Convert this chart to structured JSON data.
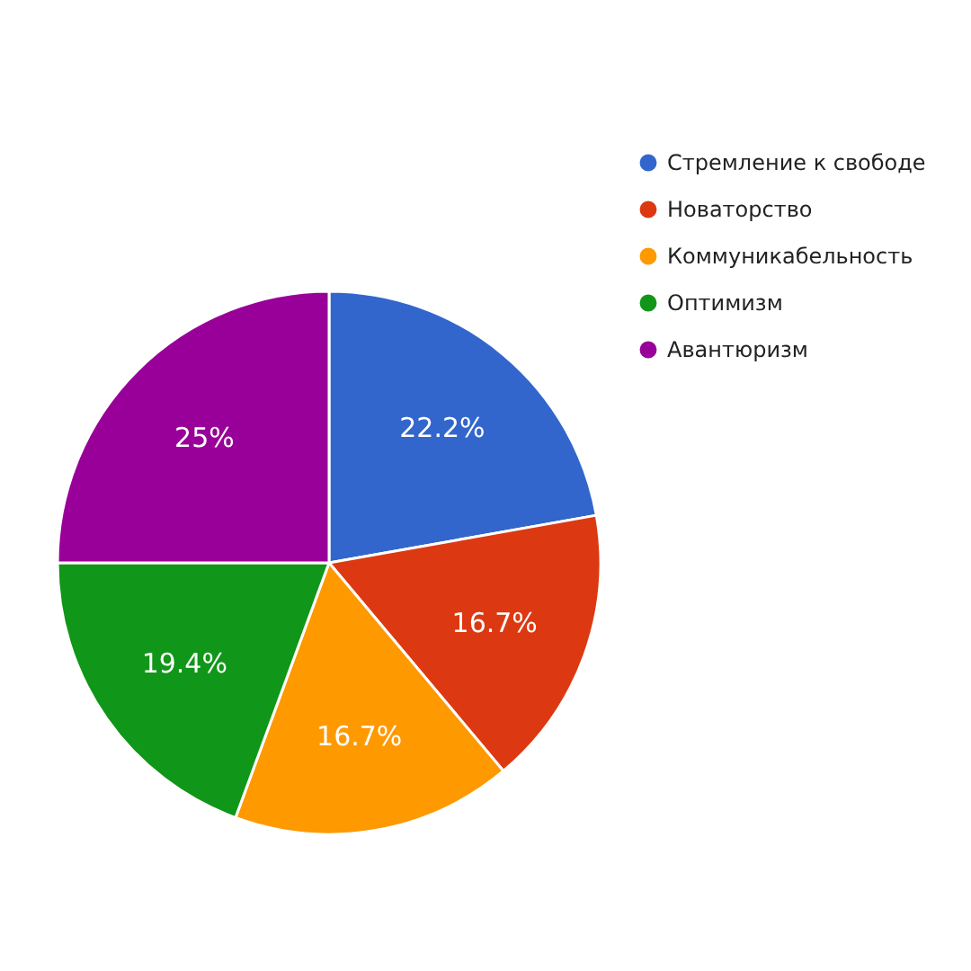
{
  "chart_data": {
    "type": "pie",
    "categories": [
      "Стремление к свободе",
      "Новаторство",
      "Коммуникабельность",
      "Оптимизм",
      "Авантюризм"
    ],
    "values": [
      22.2,
      16.7,
      16.7,
      19.4,
      25
    ],
    "colors": [
      "#3366cc",
      "#dc3912",
      "#ff9900",
      "#109618",
      "#990099"
    ],
    "value_labels": [
      "22.2%",
      "16.7%",
      "16.7%",
      "19.4%",
      "25%"
    ],
    "legend": "top right"
  }
}
